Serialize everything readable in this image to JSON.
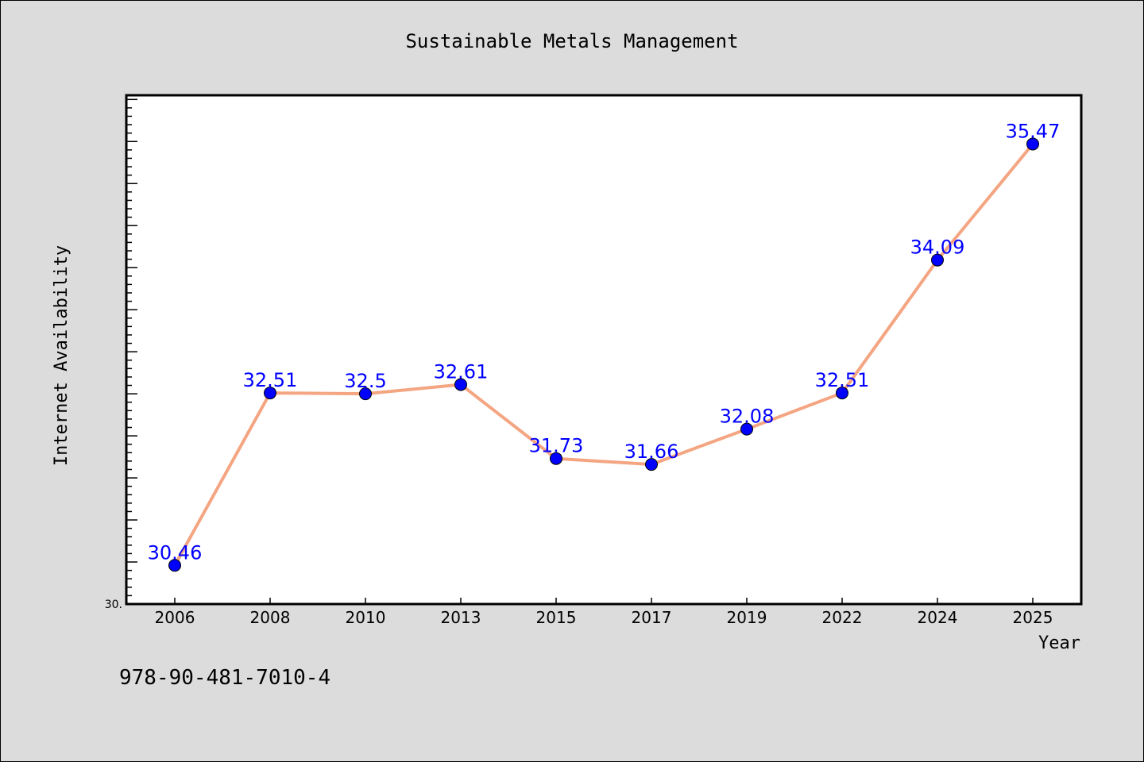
{
  "chart_data": {
    "type": "line",
    "title": "Sustainable Metals Management",
    "xlabel": "Year",
    "ylabel": "Internet Availability",
    "categories": [
      "2006",
      "2008",
      "2010",
      "2013",
      "2015",
      "2017",
      "2019",
      "2022",
      "2024",
      "2025"
    ],
    "series": [
      {
        "values": [
          30.46,
          32.51,
          32.5,
          32.61,
          31.73,
          31.66,
          32.08,
          32.51,
          34.09,
          35.47
        ],
        "data_labels": [
          "30.46",
          "32.51",
          "32.5",
          "32.61",
          "31.73",
          "31.66",
          "32.08",
          "32.51",
          "34.09",
          "35.47"
        ]
      }
    ],
    "ylim": [
      30.0,
      36.05
    ],
    "ytick_labels": [
      "30."
    ],
    "minor_ytick_step": 0.1,
    "major_ytick_step": 0.5,
    "grid": false,
    "line_color": "#f4a582",
    "marker_color": "#0000ff",
    "data_label_color": "#0000ff",
    "background_color": "#dcdcdc",
    "plot_background_color": "#ffffff"
  },
  "footnote": "978-90-481-7010-4"
}
